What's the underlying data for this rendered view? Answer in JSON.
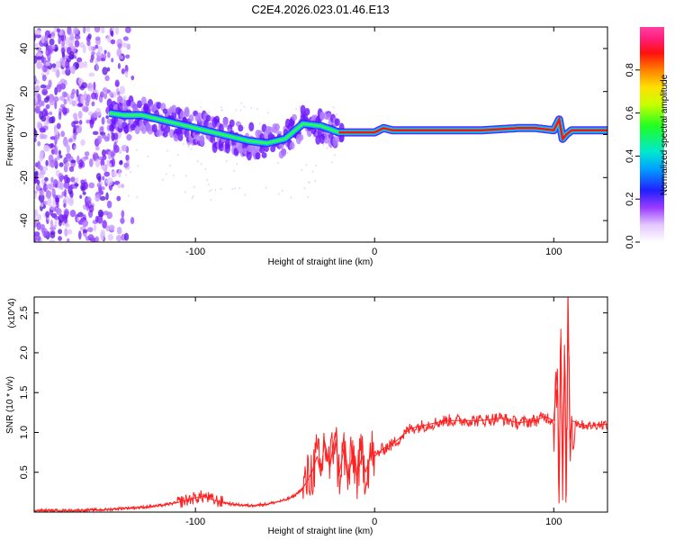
{
  "title": "C2E4.2026.023.01.46.E13",
  "chart_data": [
    {
      "type": "heatmap",
      "name": "spectrogram",
      "xlabel": "Height of straight line (km)",
      "ylabel": "Frequency (Hz)",
      "xlim": [
        -190,
        130
      ],
      "ylim": [
        -50,
        50
      ],
      "xticks": [
        -100,
        0,
        100
      ],
      "xtick_labels": [
        "-100",
        "0",
        "100"
      ],
      "yticks": [
        -40,
        -20,
        0,
        20,
        40
      ],
      "ytick_labels": [
        "-40",
        "-20",
        "0",
        "20",
        "40"
      ],
      "ridge": {
        "x": [
          -148,
          -140,
          -130,
          -120,
          -110,
          -100,
          -90,
          -80,
          -70,
          -60,
          -50,
          -40,
          -30,
          -20,
          -10,
          0,
          5,
          10,
          20,
          40,
          60,
          80,
          90,
          100,
          103,
          105,
          107,
          110,
          130
        ],
        "y": [
          10,
          9,
          9,
          7,
          5,
          3,
          1,
          -1,
          -3,
          -4,
          -2,
          5,
          4,
          1,
          1,
          1,
          3,
          2,
          2,
          2,
          2,
          3,
          3,
          2,
          7,
          -2,
          0,
          2,
          2
        ]
      },
      "colorbar": {
        "label": "Normalized spectral amplitude",
        "range": [
          0,
          1
        ],
        "ticks": [
          0.0,
          0.2,
          0.4,
          0.6,
          0.8
        ],
        "tick_labels": [
          "0.0",
          "0.2",
          "0.4",
          "0.6",
          "0.8"
        ]
      }
    },
    {
      "type": "line",
      "name": "snr",
      "xlabel": "Height of straight line (km)",
      "ylabel": "SNR (10 * v/v)",
      "y_multiplier": "(x10^4)",
      "xlim": [
        -190,
        130
      ],
      "ylim": [
        0,
        2.7
      ],
      "xticks": [
        -100,
        0,
        100
      ],
      "xtick_labels": [
        "-100",
        "0",
        "100"
      ],
      "yticks": [
        0.5,
        1.0,
        1.5,
        2.0,
        2.5
      ],
      "ytick_labels": [
        "0.5",
        "1.0",
        "1.5",
        "2.0",
        "2.5"
      ],
      "series": [
        {
          "name": "SNR",
          "color": "#ff2020",
          "x": [
            -190,
            -170,
            -150,
            -140,
            -130,
            -120,
            -110,
            -100,
            -95,
            -90,
            -80,
            -70,
            -60,
            -50,
            -45,
            -40,
            -35,
            -32,
            -30,
            -28,
            -25,
            -22,
            -20,
            -17,
            -15,
            -12,
            -10,
            -7,
            -5,
            -2,
            0,
            5,
            10,
            15,
            20,
            30,
            40,
            50,
            60,
            70,
            80,
            90,
            95,
            100,
            102,
            103,
            104,
            105,
            106,
            107,
            108,
            109,
            110,
            115,
            120,
            125,
            130
          ],
          "y": [
            0.02,
            0.02,
            0.03,
            0.05,
            0.06,
            0.08,
            0.12,
            0.18,
            0.2,
            0.15,
            0.1,
            0.08,
            0.1,
            0.15,
            0.2,
            0.3,
            0.5,
            0.7,
            0.45,
            0.9,
            0.55,
            1.0,
            0.45,
            0.8,
            0.4,
            0.75,
            0.45,
            0.7,
            0.5,
            0.75,
            0.7,
            0.8,
            0.85,
            0.95,
            1.05,
            1.1,
            1.15,
            1.15,
            1.15,
            1.18,
            1.12,
            1.15,
            1.2,
            1.15,
            1.8,
            0.3,
            2.3,
            0.15,
            2.1,
            0.2,
            2.7,
            0.9,
            1.15,
            1.1,
            1.08,
            1.1,
            1.1
          ]
        }
      ]
    }
  ]
}
